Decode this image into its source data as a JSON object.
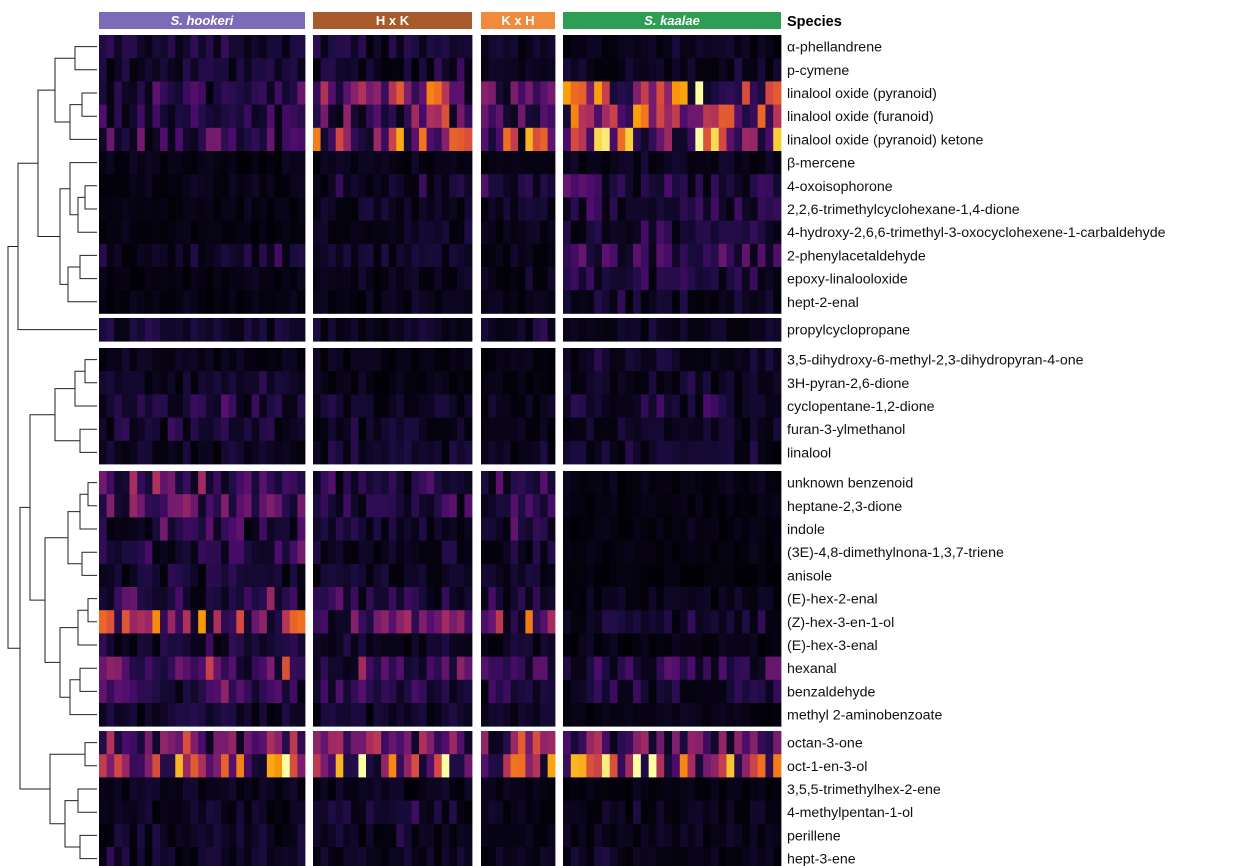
{
  "chart_data": {
    "type": "heatmap",
    "legend_title": "Species",
    "colormap": "inferno",
    "colormap_stops": [
      "#000004",
      "#1b0c41",
      "#4a0c6b",
      "#781c6d",
      "#a52c60",
      "#cf4446",
      "#ed6925",
      "#fb9b06",
      "#f7d13d",
      "#fcffa4"
    ],
    "groups": [
      {
        "name": "S. hookeri",
        "color": "#7c6bb6",
        "italic": true,
        "columns": 27
      },
      {
        "name": "H x K",
        "color": "#a85a2a",
        "italic": false,
        "columns": 21
      },
      {
        "name": "K x H",
        "color": "#f08a3c",
        "italic": false,
        "columns": 10
      },
      {
        "name": "S. kaalae",
        "color": "#2f9e55",
        "italic": true,
        "columns": 28
      }
    ],
    "row_blocks": [
      {
        "rows": [
          {
            "label": "α-phellandrene",
            "levels": [
              0.12,
              0.12,
              0.08,
              0.05
            ]
          },
          {
            "label": "p-cymene",
            "levels": [
              0.1,
              0.1,
              0.06,
              0.07
            ]
          },
          {
            "label": "linalool oxide (pyranoid)",
            "levels": [
              0.15,
              0.38,
              0.3,
              0.62
            ]
          },
          {
            "label": "linalool oxide (furanoid)",
            "levels": [
              0.18,
              0.35,
              0.28,
              0.55
            ]
          },
          {
            "label": "linalool oxide (pyranoid) ketone",
            "levels": [
              0.25,
              0.62,
              0.45,
              0.75
            ]
          },
          {
            "label": "β-mercene",
            "levels": [
              0.04,
              0.05,
              0.03,
              0.06
            ]
          },
          {
            "label": "4-oxoisophorone",
            "levels": [
              0.04,
              0.1,
              0.12,
              0.18
            ]
          },
          {
            "label": "2,2,6-trimethylcyclohexane-1,4-dione",
            "levels": [
              0.03,
              0.08,
              0.08,
              0.16
            ]
          },
          {
            "label": "4-hydroxy-2,6,6-trimethyl-3-oxocyclohexene-1-carbaldehyde",
            "levels": [
              0.03,
              0.06,
              0.05,
              0.12
            ]
          },
          {
            "label": "2-phenylacetaldehyde",
            "levels": [
              0.1,
              0.08,
              0.06,
              0.22
            ]
          },
          {
            "label": "epoxy-linalooloxide",
            "levels": [
              0.03,
              0.06,
              0.05,
              0.14
            ]
          },
          {
            "label": "hept-2-enal",
            "levels": [
              0.03,
              0.05,
              0.05,
              0.1
            ]
          }
        ]
      },
      {
        "rows": [
          {
            "label": "propylcyclopropane",
            "levels": [
              0.12,
              0.08,
              0.1,
              0.06
            ]
          }
        ]
      },
      {
        "rows": [
          {
            "label": "3,5-dihydroxy-6-methyl-2,3-dihydropyran-4-one",
            "levels": [
              0.05,
              0.04,
              0.04,
              0.08
            ]
          },
          {
            "label": "3H-pyran-2,6-dione",
            "levels": [
              0.08,
              0.04,
              0.04,
              0.08
            ]
          },
          {
            "label": "cyclopentane-1,2-dione",
            "levels": [
              0.14,
              0.08,
              0.06,
              0.12
            ]
          },
          {
            "label": "furan-3-ylmethanol",
            "levels": [
              0.12,
              0.08,
              0.06,
              0.08
            ]
          },
          {
            "label": "linalool",
            "levels": [
              0.08,
              0.08,
              0.06,
              0.08
            ]
          }
        ]
      },
      {
        "rows": [
          {
            "label": "unknown benzenoid",
            "levels": [
              0.25,
              0.18,
              0.2,
              0.03
            ]
          },
          {
            "label": "heptane-2,3-dione",
            "levels": [
              0.3,
              0.18,
              0.22,
              0.03
            ]
          },
          {
            "label": "indole",
            "levels": [
              0.18,
              0.12,
              0.14,
              0.03
            ]
          },
          {
            "label": "(3E)-4,8-dimethylnona-1,3,7-triene",
            "levels": [
              0.16,
              0.1,
              0.12,
              0.03
            ]
          },
          {
            "label": "anisole",
            "levels": [
              0.12,
              0.08,
              0.08,
              0.02
            ]
          },
          {
            "label": "(E)-hex-2-enal",
            "levels": [
              0.22,
              0.14,
              0.16,
              0.05
            ]
          },
          {
            "label": "(Z)-hex-3-en-1-ol",
            "levels": [
              0.58,
              0.35,
              0.38,
              0.1
            ]
          },
          {
            "label": "(E)-hex-3-enal",
            "levels": [
              0.12,
              0.08,
              0.08,
              0.04
            ]
          },
          {
            "label": "hexanal",
            "levels": [
              0.3,
              0.28,
              0.25,
              0.2
            ]
          },
          {
            "label": "benzaldehyde",
            "levels": [
              0.2,
              0.18,
              0.16,
              0.14
            ]
          },
          {
            "label": "methyl 2-aminobenzoate",
            "levels": [
              0.1,
              0.1,
              0.08,
              0.04
            ]
          }
        ]
      },
      {
        "rows": [
          {
            "label": "octan-3-one",
            "levels": [
              0.38,
              0.38,
              0.32,
              0.32
            ]
          },
          {
            "label": "oct-1-en-3-ol",
            "levels": [
              0.62,
              0.62,
              0.55,
              0.55
            ]
          },
          {
            "label": "3,5,5-trimethylhex-2-ene",
            "levels": [
              0.06,
              0.06,
              0.05,
              0.03
            ]
          },
          {
            "label": "4-methylpentan-1-ol",
            "levels": [
              0.08,
              0.1,
              0.06,
              0.06
            ]
          },
          {
            "label": "perillene",
            "levels": [
              0.08,
              0.08,
              0.06,
              0.06
            ]
          },
          {
            "label": "hept-3-ene",
            "levels": [
              0.08,
              0.08,
              0.06,
              0.06
            ]
          }
        ]
      }
    ]
  }
}
